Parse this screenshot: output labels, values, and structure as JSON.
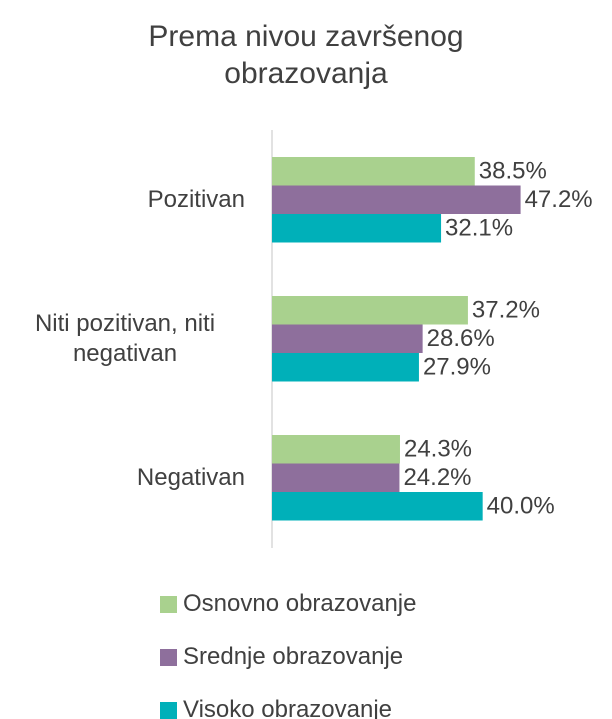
{
  "chart_data": {
    "type": "bar",
    "orientation": "horizontal",
    "title": "Prema nivou završenog obrazovanja",
    "categories": [
      "Pozitivan",
      "Niti pozitivan, niti negativan",
      "Negativan"
    ],
    "series": [
      {
        "name": "Osnovno obrazovanje",
        "color": "#a9d18e",
        "values": [
          38.5,
          37.2,
          24.3
        ],
        "value_labels": [
          "38.5%",
          "37.2%",
          "24.3%"
        ]
      },
      {
        "name": "Srednje obrazovanje",
        "color": "#8e6f9c",
        "values": [
          47.2,
          28.6,
          24.2
        ],
        "value_labels": [
          "47.2%",
          "28.6%",
          "24.2%"
        ]
      },
      {
        "name": "Visoko obrazovanje",
        "color": "#00b0b9",
        "values": [
          32.1,
          27.9,
          40.0
        ],
        "value_labels": [
          "32.1%",
          "27.9%",
          "40.0%"
        ]
      }
    ],
    "xlim": [
      0,
      60
    ],
    "legend": "bottom"
  }
}
